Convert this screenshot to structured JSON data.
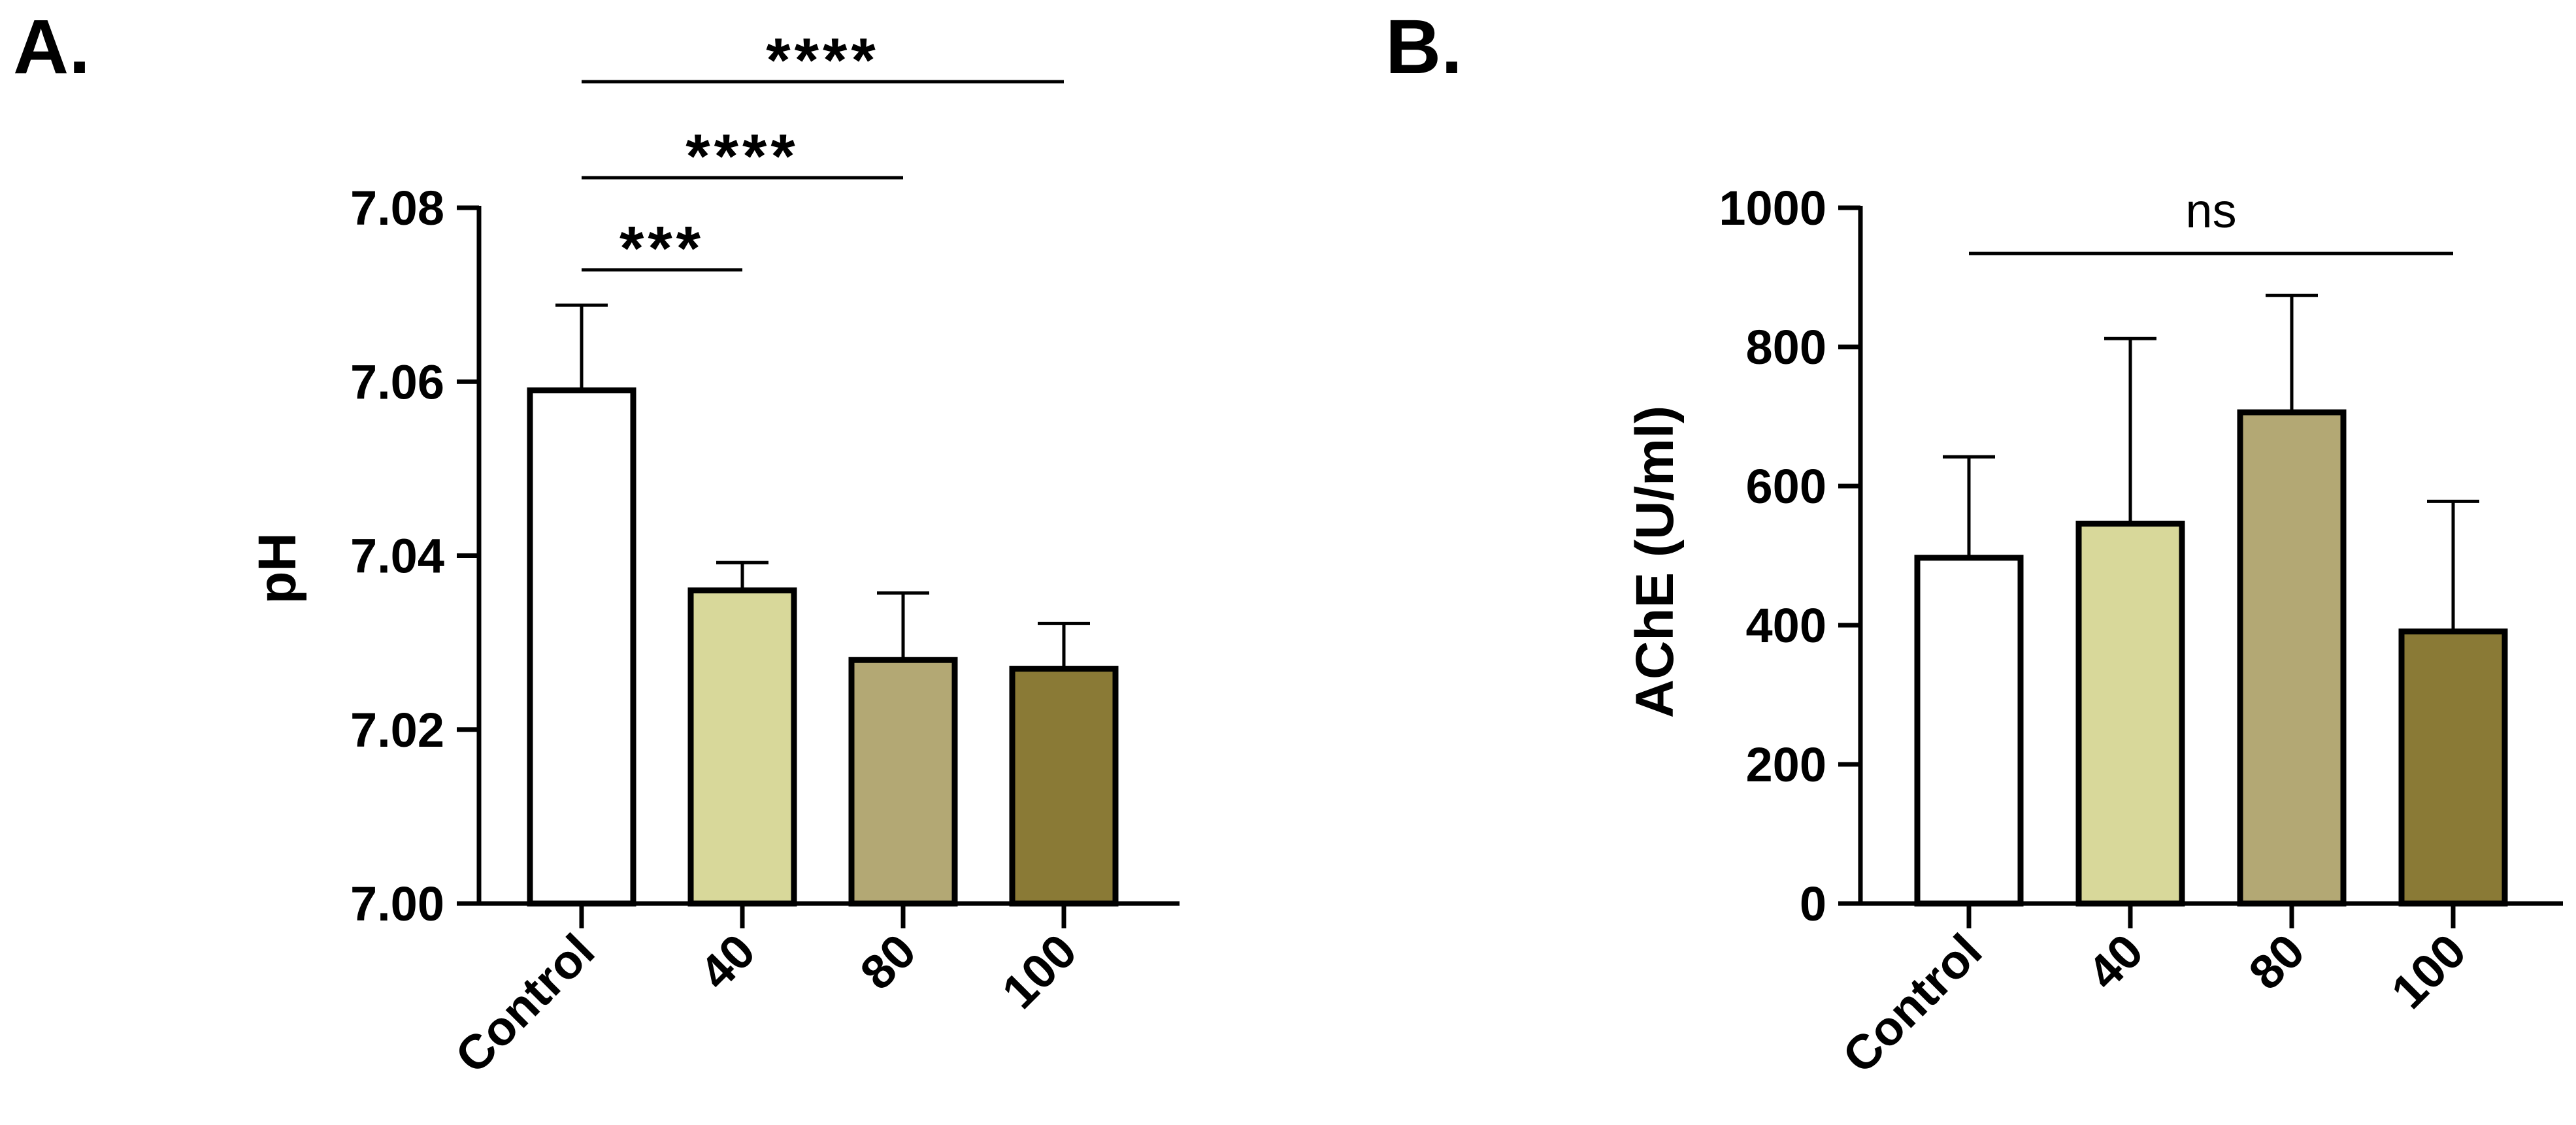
{
  "colors": {
    "control": "#ffffff",
    "dose_40": "#d8d89a",
    "dose_80": "#b3a874",
    "dose_100": "#8a7a36",
    "stroke": "#000000"
  },
  "chart_data": [
    {
      "panel": "A.",
      "type": "bar",
      "categories": [
        "Control",
        "40",
        "80",
        "100"
      ],
      "values": [
        7.059,
        7.036,
        7.028,
        7.027
      ],
      "errors": [
        0.0098,
        0.0032,
        0.0077,
        0.0052
      ],
      "ylabel": "pH",
      "xlabel": "",
      "ylim": [
        7.0,
        7.08
      ],
      "yticks": [
        "7.00",
        "7.02",
        "7.04",
        "7.06",
        "7.08"
      ],
      "ytick_values": [
        7.0,
        7.02,
        7.04,
        7.06,
        7.08
      ],
      "significance": [
        {
          "from": "Control",
          "to": "40",
          "label": "***"
        },
        {
          "from": "Control",
          "to": "80",
          "label": "****"
        },
        {
          "from": "Control",
          "to": "100",
          "label": "****"
        }
      ]
    },
    {
      "panel": "B.",
      "type": "bar",
      "categories": [
        "Control",
        "40",
        "80",
        "100"
      ],
      "values": [
        497,
        546,
        706,
        391
      ],
      "errors": [
        145,
        266,
        168,
        187
      ],
      "ylabel": "AChE (U/ml)",
      "xlabel": "",
      "ylim": [
        0,
        1000
      ],
      "yticks": [
        "0",
        "200",
        "400",
        "600",
        "800",
        "1000"
      ],
      "ytick_values": [
        0,
        200,
        400,
        600,
        800,
        1000
      ],
      "significance": [
        {
          "from": "Control",
          "to": "100",
          "label": "ns"
        }
      ]
    }
  ]
}
